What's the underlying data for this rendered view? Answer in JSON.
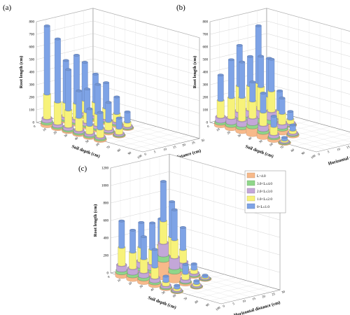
{
  "legend": {
    "items": [
      {
        "label": "L>4.0",
        "color": "#f7b98a"
      },
      {
        "label": "3.0<L≤4.0",
        "color": "#8fd68a"
      },
      {
        "label": "2.0<L≤3.0",
        "color": "#c3a7d8"
      },
      {
        "label": "1.0<L≤2.0",
        "color": "#f7f27a"
      },
      {
        "label": "0<L≤1.0",
        "color": "#7ea3e6"
      }
    ]
  },
  "chart_data": [
    {
      "type": "bar3d",
      "panel_label": "(a)",
      "zlabel": "Root length (cm)",
      "xlabel": "Soil depth (cm)",
      "ylabel": "Horizontal distance (cm)",
      "zticks": [
        0,
        100,
        200,
        300,
        400,
        500,
        600,
        700,
        800
      ],
      "zlim": [
        0,
        800
      ],
      "depth_ticks": [
        "0",
        "10",
        "20",
        "30",
        "40",
        "50",
        "60",
        "70",
        "80",
        "90",
        "100"
      ],
      "distance_ticks": [
        "0",
        "5",
        "10",
        "15",
        "20",
        "25",
        "30"
      ],
      "series": [
        "L>4.0",
        "3.0<L≤4.0",
        "2.0<L≤3.0",
        "1.0<L≤2.0",
        "0<L≤1.0"
      ],
      "bars": [
        {
          "depth": "10",
          "distance": "0",
          "values": [
            20,
            15,
            25,
            190,
            540
          ]
        },
        {
          "depth": "20",
          "distance": "0",
          "values": [
            10,
            10,
            20,
            170,
            500
          ]
        },
        {
          "depth": "30",
          "distance": "0",
          "values": [
            10,
            10,
            20,
            130,
            320
          ]
        },
        {
          "depth": "40",
          "distance": "0",
          "values": [
            10,
            10,
            15,
            100,
            210
          ]
        },
        {
          "depth": "50",
          "distance": "0",
          "values": [
            10,
            10,
            15,
            60,
            130
          ]
        },
        {
          "depth": "60",
          "distance": "0",
          "values": [
            10,
            10,
            10,
            60,
            130
          ]
        },
        {
          "depth": "10",
          "distance": "10",
          "values": [
            10,
            10,
            20,
            110,
            330
          ]
        },
        {
          "depth": "20",
          "distance": "10",
          "values": [
            10,
            10,
            25,
            120,
            380
          ]
        },
        {
          "depth": "30",
          "distance": "10",
          "values": [
            10,
            10,
            20,
            80,
            180
          ]
        },
        {
          "depth": "40",
          "distance": "10",
          "values": [
            10,
            10,
            20,
            90,
            230
          ]
        },
        {
          "depth": "50",
          "distance": "10",
          "values": [
            10,
            5,
            15,
            60,
            150
          ]
        },
        {
          "depth": "60",
          "distance": "10",
          "values": [
            5,
            5,
            10,
            40,
            80
          ]
        },
        {
          "depth": "10",
          "distance": "20",
          "values": [
            10,
            10,
            20,
            90,
            300
          ]
        },
        {
          "depth": "20",
          "distance": "20",
          "values": [
            10,
            10,
            20,
            100,
            220
          ]
        },
        {
          "depth": "30",
          "distance": "20",
          "values": [
            10,
            10,
            15,
            80,
            200
          ]
        },
        {
          "depth": "40",
          "distance": "20",
          "values": [
            10,
            10,
            15,
            60,
            130
          ]
        },
        {
          "depth": "50",
          "distance": "20",
          "values": [
            5,
            5,
            10,
            30,
            80
          ]
        }
      ]
    },
    {
      "type": "bar3d",
      "panel_label": "(b)",
      "zlabel": "Root length (cm)",
      "xlabel": "Soil depth (cm)",
      "ylabel": "Horizontal distance (cm)",
      "zticks": [
        0,
        100,
        200,
        300,
        400,
        500,
        600,
        700,
        800
      ],
      "zlim": [
        0,
        800
      ],
      "depth_ticks": [
        "0",
        "10",
        "20",
        "30",
        "40",
        "50",
        "60",
        "70",
        "80",
        "90",
        "100"
      ],
      "distance_ticks": [
        "0",
        "5",
        "10",
        "15",
        "20",
        "25",
        "30"
      ],
      "series": [
        "L>4.0",
        "3.0<L≤4.0",
        "2.0<L≤3.0",
        "1.0<L≤2.0",
        "0<L≤1.0"
      ],
      "bars": [
        {
          "depth": "10",
          "distance": "0",
          "values": [
            20,
            15,
            35,
            130,
            200
          ]
        },
        {
          "depth": "20",
          "distance": "0",
          "values": [
            25,
            20,
            40,
            160,
            300
          ]
        },
        {
          "depth": "30",
          "distance": "0",
          "values": [
            30,
            20,
            40,
            180,
            280
          ]
        },
        {
          "depth": "40",
          "distance": "0",
          "values": [
            60,
            25,
            50,
            130,
            150
          ]
        },
        {
          "depth": "50",
          "distance": "0",
          "values": [
            40,
            20,
            40,
            100,
            150
          ]
        },
        {
          "depth": "60",
          "distance": "0",
          "values": [
            20,
            10,
            20,
            60,
            80
          ]
        },
        {
          "depth": "70",
          "distance": "0",
          "values": [
            5,
            5,
            5,
            10,
            20
          ]
        },
        {
          "depth": "10",
          "distance": "10",
          "values": [
            20,
            20,
            40,
            200,
            320
          ]
        },
        {
          "depth": "20",
          "distance": "10",
          "values": [
            40,
            25,
            50,
            190,
            230
          ]
        },
        {
          "depth": "30",
          "distance": "10",
          "values": [
            50,
            30,
            60,
            180,
            240
          ]
        },
        {
          "depth": "40",
          "distance": "10",
          "values": [
            60,
            30,
            60,
            160,
            250
          ]
        },
        {
          "depth": "50",
          "distance": "10",
          "values": [
            30,
            15,
            30,
            80,
            120
          ]
        },
        {
          "depth": "60",
          "distance": "10",
          "values": [
            10,
            5,
            10,
            20,
            40
          ]
        },
        {
          "depth": "10",
          "distance": "20",
          "values": [
            30,
            20,
            40,
            180,
            450
          ]
        },
        {
          "depth": "20",
          "distance": "20",
          "values": [
            20,
            15,
            30,
            120,
            300
          ]
        },
        {
          "depth": "30",
          "distance": "20",
          "values": [
            10,
            10,
            20,
            60,
            150
          ]
        },
        {
          "depth": "40",
          "distance": "20",
          "values": [
            5,
            5,
            10,
            30,
            60
          ]
        }
      ]
    },
    {
      "type": "bar3d",
      "panel_label": "(c)",
      "zlabel": "Root length (cm)",
      "xlabel": "Soil depth (cm)",
      "ylabel": "Horizontal distance (cm)",
      "zticks": [
        0,
        200,
        400,
        600,
        800,
        1000,
        1200
      ],
      "zlim": [
        0,
        1200
      ],
      "depth_ticks": [
        "0",
        "10",
        "20",
        "30",
        "40",
        "50",
        "60",
        "70",
        "80",
        "90",
        "100"
      ],
      "distance_ticks": [
        "0",
        "5",
        "10",
        "15",
        "20",
        "25",
        "30"
      ],
      "series": [
        "L>4.0",
        "3.0<L≤4.0",
        "2.0<L≤3.0",
        "1.0<L≤2.0",
        "0<L≤1.0"
      ],
      "bars": [
        {
          "depth": "10",
          "distance": "0",
          "values": [
            40,
            30,
            60,
            200,
            300
          ]
        },
        {
          "depth": "20",
          "distance": "0",
          "values": [
            40,
            30,
            60,
            180,
            250
          ]
        },
        {
          "depth": "30",
          "distance": "0",
          "values": [
            40,
            30,
            50,
            150,
            250
          ]
        },
        {
          "depth": "40",
          "distance": "0",
          "values": [
            30,
            20,
            40,
            120,
            200
          ]
        },
        {
          "depth": "50",
          "distance": "0",
          "values": [
            10,
            10,
            20,
            40,
            60
          ]
        },
        {
          "depth": "60",
          "distance": "0",
          "values": [
            5,
            5,
            10,
            20,
            30
          ]
        },
        {
          "depth": "10",
          "distance": "10",
          "values": [
            30,
            30,
            60,
            160,
            280
          ]
        },
        {
          "depth": "20",
          "distance": "10",
          "values": [
            40,
            30,
            60,
            160,
            300
          ]
        },
        {
          "depth": "30",
          "distance": "10",
          "values": [
            200,
            60,
            140,
            250,
            450
          ]
        },
        {
          "depth": "40",
          "distance": "10",
          "values": [
            100,
            50,
            120,
            200,
            340
          ]
        },
        {
          "depth": "50",
          "distance": "10",
          "values": [
            20,
            10,
            30,
            60,
            100
          ]
        },
        {
          "depth": "60",
          "distance": "10",
          "values": [
            5,
            5,
            10,
            20,
            30
          ]
        },
        {
          "depth": "10",
          "distance": "20",
          "values": [
            30,
            20,
            50,
            150,
            300
          ]
        },
        {
          "depth": "20",
          "distance": "20",
          "values": [
            60,
            40,
            80,
            200,
            400
          ]
        },
        {
          "depth": "30",
          "distance": "20",
          "values": [
            40,
            30,
            60,
            140,
            250
          ]
        },
        {
          "depth": "40",
          "distance": "20",
          "values": [
            10,
            10,
            20,
            40,
            60
          ]
        },
        {
          "depth": "50",
          "distance": "20",
          "values": [
            5,
            5,
            5,
            10,
            20
          ]
        }
      ]
    }
  ]
}
